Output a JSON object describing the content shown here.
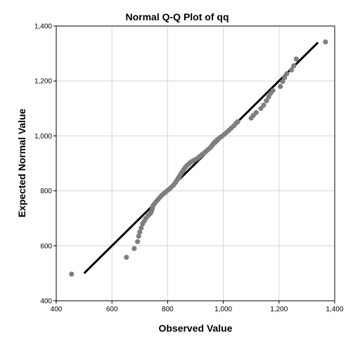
{
  "chart_data": {
    "type": "scatter",
    "title": "Normal Q-Q Plot of qq",
    "xlabel": "Observed Value",
    "ylabel": "Expected Normal Value",
    "xlim": [
      400,
      1400
    ],
    "ylim": [
      400,
      1400
    ],
    "xticks": [
      400,
      600,
      800,
      1000,
      1200,
      1400
    ],
    "yticks": [
      400,
      600,
      800,
      1000,
      1200,
      1400
    ],
    "xtick_labels": [
      "400",
      "600",
      "800",
      "1,000",
      "1,200",
      "1,400"
    ],
    "ytick_labels": [
      "400",
      "600",
      "800",
      "1,000",
      "1,200",
      "1,400"
    ],
    "grid": true,
    "reference_line": {
      "x": [
        500,
        1340
      ],
      "y": [
        500,
        1340
      ]
    },
    "colors": {
      "points": "#7f7f7f",
      "line": "#000000",
      "grid": "#d6d6d6"
    },
    "points": [
      {
        "x": 455,
        "y": 497
      },
      {
        "x": 652,
        "y": 558
      },
      {
        "x": 680,
        "y": 590
      },
      {
        "x": 692,
        "y": 615
      },
      {
        "x": 696,
        "y": 635
      },
      {
        "x": 700,
        "y": 650
      },
      {
        "x": 705,
        "y": 665
      },
      {
        "x": 710,
        "y": 680
      },
      {
        "x": 716,
        "y": 690
      },
      {
        "x": 722,
        "y": 700
      },
      {
        "x": 730,
        "y": 710
      },
      {
        "x": 738,
        "y": 718
      },
      {
        "x": 742,
        "y": 726
      },
      {
        "x": 745,
        "y": 735
      },
      {
        "x": 747,
        "y": 745
      },
      {
        "x": 752,
        "y": 752
      },
      {
        "x": 758,
        "y": 760
      },
      {
        "x": 765,
        "y": 768
      },
      {
        "x": 772,
        "y": 776
      },
      {
        "x": 778,
        "y": 783
      },
      {
        "x": 785,
        "y": 789
      },
      {
        "x": 792,
        "y": 795
      },
      {
        "x": 800,
        "y": 802
      },
      {
        "x": 808,
        "y": 808
      },
      {
        "x": 815,
        "y": 815
      },
      {
        "x": 822,
        "y": 822
      },
      {
        "x": 828,
        "y": 830
      },
      {
        "x": 833,
        "y": 838
      },
      {
        "x": 838,
        "y": 846
      },
      {
        "x": 843,
        "y": 854
      },
      {
        "x": 848,
        "y": 862
      },
      {
        "x": 853,
        "y": 870
      },
      {
        "x": 858,
        "y": 878
      },
      {
        "x": 864,
        "y": 886
      },
      {
        "x": 870,
        "y": 893
      },
      {
        "x": 877,
        "y": 899
      },
      {
        "x": 884,
        "y": 905
      },
      {
        "x": 892,
        "y": 910
      },
      {
        "x": 900,
        "y": 914
      },
      {
        "x": 908,
        "y": 919
      },
      {
        "x": 915,
        "y": 925
      },
      {
        "x": 922,
        "y": 931
      },
      {
        "x": 930,
        "y": 937
      },
      {
        "x": 938,
        "y": 944
      },
      {
        "x": 946,
        "y": 951
      },
      {
        "x": 954,
        "y": 958
      },
      {
        "x": 960,
        "y": 966
      },
      {
        "x": 965,
        "y": 973
      },
      {
        "x": 972,
        "y": 980
      },
      {
        "x": 979,
        "y": 987
      },
      {
        "x": 987,
        "y": 993
      },
      {
        "x": 995,
        "y": 999
      },
      {
        "x": 1004,
        "y": 1006
      },
      {
        "x": 1012,
        "y": 1013
      },
      {
        "x": 1020,
        "y": 1020
      },
      {
        "x": 1028,
        "y": 1028
      },
      {
        "x": 1037,
        "y": 1036
      },
      {
        "x": 1045,
        "y": 1045
      },
      {
        "x": 1052,
        "y": 1052
      },
      {
        "x": 1100,
        "y": 1065
      },
      {
        "x": 1108,
        "y": 1075
      },
      {
        "x": 1118,
        "y": 1085
      },
      {
        "x": 1135,
        "y": 1100
      },
      {
        "x": 1145,
        "y": 1112
      },
      {
        "x": 1155,
        "y": 1128
      },
      {
        "x": 1163,
        "y": 1142
      },
      {
        "x": 1170,
        "y": 1155
      },
      {
        "x": 1178,
        "y": 1165
      },
      {
        "x": 1205,
        "y": 1180
      },
      {
        "x": 1213,
        "y": 1198
      },
      {
        "x": 1220,
        "y": 1212
      },
      {
        "x": 1228,
        "y": 1226
      },
      {
        "x": 1245,
        "y": 1240
      },
      {
        "x": 1253,
        "y": 1255
      },
      {
        "x": 1262,
        "y": 1280
      },
      {
        "x": 1367,
        "y": 1342
      }
    ]
  }
}
